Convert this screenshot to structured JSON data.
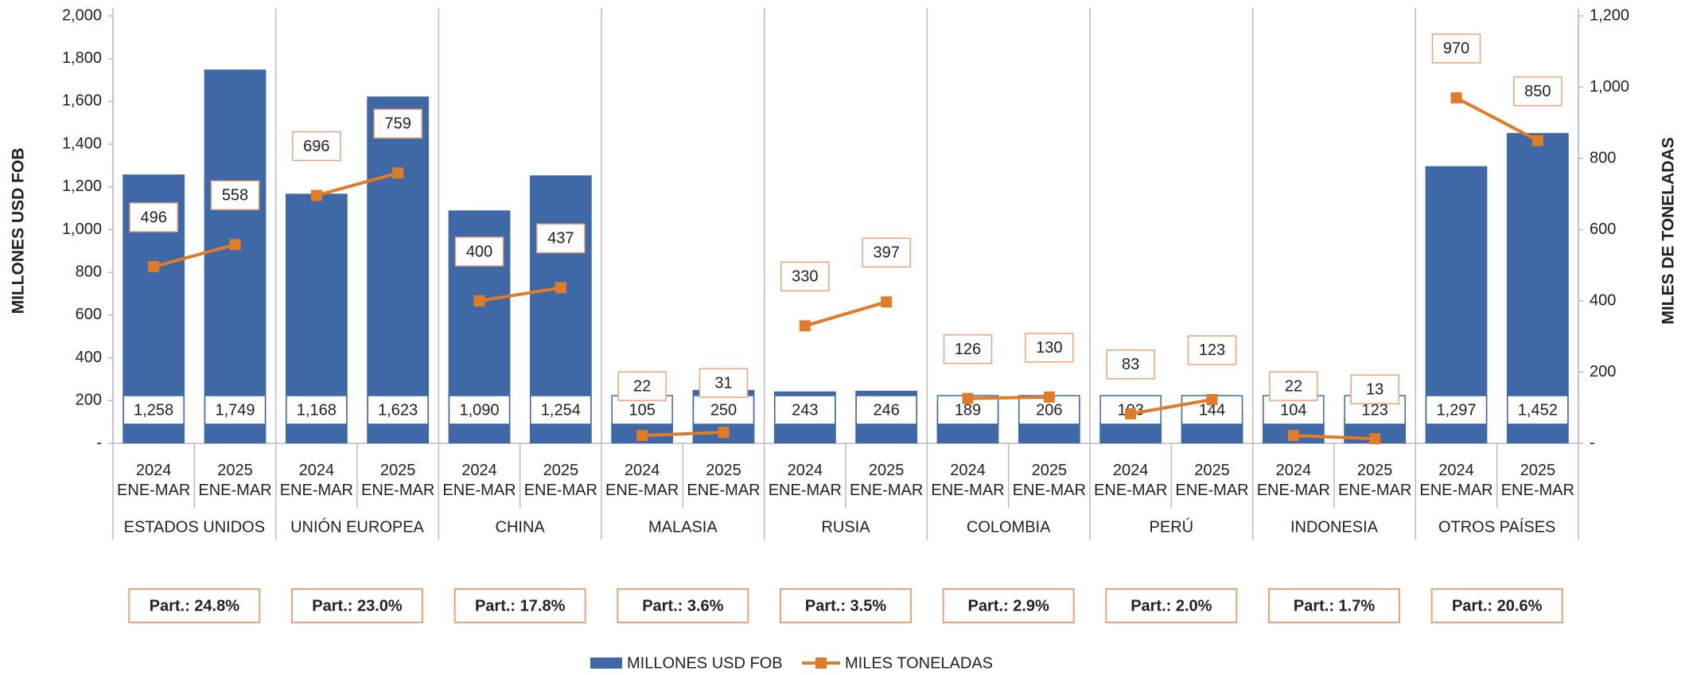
{
  "chart_data": {
    "type": "bar_line",
    "y_label": "MILLONES USD FOB",
    "y2_label": "MILES DE TONELADAS",
    "categories": [
      [
        "2024",
        "ENE-MAR"
      ],
      [
        "2025",
        "ENE-MAR"
      ],
      [
        "2024",
        "ENE-MAR"
      ],
      [
        "2025",
        "ENE-MAR"
      ],
      [
        "2024",
        "ENE-MAR"
      ],
      [
        "2025",
        "ENE-MAR"
      ],
      [
        "2024",
        "ENE-MAR"
      ],
      [
        "2025",
        "ENE-MAR"
      ],
      [
        "2024",
        "ENE-MAR"
      ],
      [
        "2025",
        "ENE-MAR"
      ],
      [
        "2024",
        "ENE-MAR"
      ],
      [
        "2025",
        "ENE-MAR"
      ],
      [
        "2024",
        "ENE-MAR"
      ],
      [
        "2025",
        "ENE-MAR"
      ],
      [
        "2024",
        "ENE-MAR"
      ],
      [
        "2025",
        "ENE-MAR"
      ],
      [
        "2024",
        "ENE-MAR"
      ],
      [
        "2025",
        "ENE-MAR"
      ]
    ],
    "groups": [
      "ESTADOS UNIDOS",
      "UNIÓN EUROPEA",
      "CHINA",
      "MALASIA",
      "RUSIA",
      "COLOMBIA",
      "PERÚ",
      "INDONESIA",
      "OTROS PAÍSES"
    ],
    "group_annotations": [
      "Part.: 24.8%",
      "Part.: 23.0%",
      "Part.: 17.8%",
      "Part.: 3.6%",
      "Part.: 3.5%",
      "Part.: 2.9%",
      "Part.: 2.0%",
      "Part.: 1.7%",
      "Part.: 20.6%"
    ],
    "series": [
      {
        "name": "MILLONES USD FOB",
        "color": "#3f69a6",
        "type": "bar",
        "values": [
          1258,
          1749,
          1168,
          1623,
          1090,
          1254,
          105,
          250,
          243,
          246,
          189,
          206,
          103,
          144,
          104,
          123,
          1297,
          1452
        ],
        "value_labels": [
          "1,258",
          "1,749",
          "1,168",
          "1,623",
          "1,090",
          "1,254",
          "105",
          "250",
          "243",
          "246",
          "189",
          "206",
          "103",
          "144",
          "104",
          "123",
          "1,297",
          "1,452"
        ]
      },
      {
        "name": "MILES TONELADAS",
        "color": "#e07b28",
        "type": "line",
        "axis": "y2",
        "values": [
          496,
          558,
          696,
          759,
          400,
          437,
          22,
          31,
          330,
          397,
          126,
          130,
          83,
          123,
          22,
          13,
          970,
          850
        ]
      }
    ],
    "ylim": [
      0,
      2000
    ],
    "yticks": [
      {
        "value": 0,
        "label": "-"
      },
      200,
      400,
      600,
      800,
      {
        "value": 1000,
        "label": "1,000"
      },
      {
        "value": 1200,
        "label": "1,200"
      },
      {
        "value": 1400,
        "label": "1,400"
      },
      {
        "value": 1600,
        "label": "1,600"
      },
      {
        "value": 1800,
        "label": "1,800"
      },
      {
        "value": 2000,
        "label": "2,000"
      }
    ],
    "y2lim": [
      0,
      1200
    ],
    "y2ticks": [
      {
        "value": 0,
        "label": "-"
      },
      200,
      400,
      600,
      800,
      {
        "value": 1000,
        "label": "1,000"
      },
      {
        "value": 1200,
        "label": "1,200"
      }
    ],
    "grid": false,
    "legend": "bottom"
  }
}
